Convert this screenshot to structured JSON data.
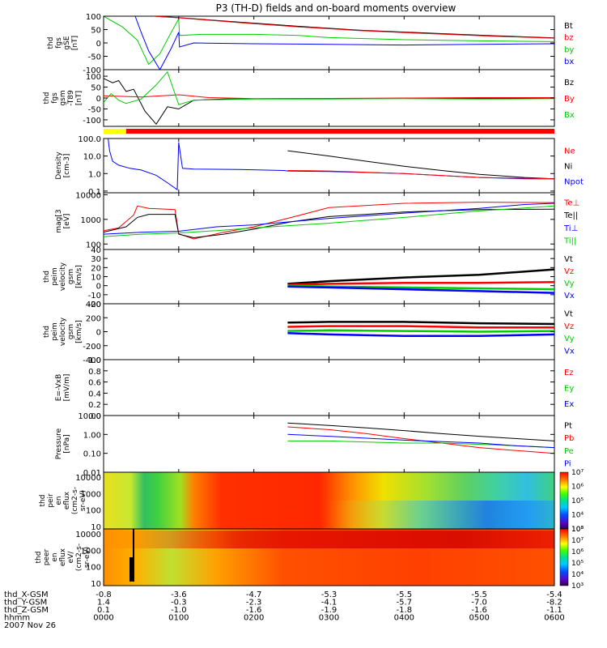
{
  "title": "P3 (TH-D) fields and on-board moments overview",
  "colors": {
    "black": "#000000",
    "red": "#ff0000",
    "green": "#00cc00",
    "blue": "#0000ff",
    "yellow": "#ffff00",
    "mag_bar": "#ff0000"
  },
  "chart_data": [
    {
      "type": "line",
      "panel": "fgs_gse",
      "ylabel": [
        "thd",
        "fgs",
        "gSE",
        "[nT]"
      ],
      "ylim": [
        -100,
        100
      ],
      "yticks": [
        -100,
        -50,
        0,
        50,
        100
      ],
      "legend": [
        {
          "label": "Bt",
          "color": "black"
        },
        {
          "label": "bz",
          "color": "red"
        },
        {
          "label": "by",
          "color": "green"
        },
        {
          "label": "bx",
          "color": "blue"
        }
      ],
      "series": [
        {
          "name": "Bt",
          "color": "black",
          "x": [
            0.66,
            1.0,
            1.8,
            2.6,
            3.4,
            4.4,
            5.2,
            6.0
          ],
          "y": [
            100,
            95,
            78,
            62,
            48,
            36,
            27,
            19
          ]
        },
        {
          "name": "bz",
          "color": "red",
          "x": [
            0.66,
            1.0,
            1.8,
            2.6,
            3.4,
            4.4,
            5.2,
            6.0
          ],
          "y": [
            100,
            94,
            76,
            60,
            46,
            34,
            25,
            18
          ]
        },
        {
          "name": "by",
          "color": "green",
          "x": [
            0.0,
            0.25,
            0.45,
            0.6,
            0.75,
            0.9,
            1.0,
            1.01,
            1.3,
            2.0,
            2.6,
            3.0,
            4.0,
            5.0,
            6.0
          ],
          "y": [
            100,
            60,
            10,
            -80,
            -40,
            40,
            90,
            28,
            32,
            32,
            28,
            20,
            12,
            8,
            5
          ]
        },
        {
          "name": "bx",
          "color": "blue",
          "x": [
            0.42,
            0.5,
            0.6,
            0.75,
            0.9,
            1.0,
            1.01,
            1.2,
            2.0,
            3.0,
            4.0,
            5.0,
            6.0
          ],
          "y": [
            100,
            40,
            -30,
            -100,
            -20,
            40,
            -15,
            0,
            -3,
            -5,
            -8,
            -5,
            -3
          ]
        }
      ]
    },
    {
      "type": "line",
      "panel": "fgs_gsm",
      "ylabel": [
        "thd",
        "fgs",
        "gsm",
        "-T89",
        "[nT]"
      ],
      "ylim": [
        -130,
        130
      ],
      "yticks": [
        -100,
        -50,
        0,
        50,
        100
      ],
      "legend": [
        {
          "label": "Bz",
          "color": "black"
        },
        {
          "label": "By",
          "color": "red"
        },
        {
          "label": "Bx",
          "color": "green"
        }
      ],
      "series": [
        {
          "name": "Bz",
          "color": "black",
          "x": [
            0.0,
            0.12,
            0.2,
            0.3,
            0.4,
            0.55,
            0.7,
            0.85,
            1.0,
            1.2,
            1.6,
            2.5,
            3.5,
            4.5,
            6.0
          ],
          "y": [
            90,
            70,
            80,
            30,
            40,
            -60,
            -120,
            -40,
            -50,
            -10,
            -5,
            -3,
            -2,
            -2,
            -2
          ]
        },
        {
          "name": "By",
          "color": "red",
          "x": [
            0.0,
            0.5,
            1.0,
            1.4,
            2.0,
            3.0,
            4.0,
            5.0,
            6.0
          ],
          "y": [
            10,
            5,
            15,
            2,
            -3,
            -2,
            0,
            2,
            2
          ]
        },
        {
          "name": "Bx",
          "color": "green",
          "x": [
            0.0,
            0.1,
            0.2,
            0.3,
            0.5,
            0.7,
            0.85,
            1.0,
            1.2,
            2.0,
            3.0,
            4.0,
            5.0,
            6.0
          ],
          "y": [
            -20,
            20,
            -10,
            -25,
            -5,
            60,
            120,
            -30,
            -10,
            -5,
            -5,
            -3,
            -5,
            -3
          ]
        }
      ]
    },
    {
      "type": "line",
      "panel": "density",
      "ylabel": [
        "Density",
        "[cm-3]"
      ],
      "yscale": "log",
      "ylim": [
        0.08,
        100
      ],
      "yticks": [
        "0.1",
        "1.0",
        "10.0",
        "100.0"
      ],
      "legend": [
        {
          "label": "Ne",
          "color": "red"
        },
        {
          "label": "Ni",
          "color": "black"
        },
        {
          "label": "Npot",
          "color": "blue"
        }
      ],
      "series": [
        {
          "name": "Npot",
          "color": "blue",
          "x": [
            0.0,
            0.06,
            0.08,
            0.12,
            0.2,
            0.35,
            0.5,
            0.7,
            0.85,
            0.98,
            1.0,
            1.05,
            1.2,
            1.8,
            2.4,
            2.45,
            3.0,
            4.0,
            5.0,
            5.6,
            6.0
          ],
          "y": [
            100,
            100,
            20,
            5,
            3,
            2,
            1.6,
            0.8,
            0.3,
            0.12,
            60,
            2,
            1.8,
            1.7,
            1.5,
            1.4,
            1.3,
            1.0,
            0.6,
            0.5,
            0.5
          ]
        },
        {
          "name": "Ni",
          "color": "black",
          "x": [
            2.45,
            3.0,
            3.5,
            4.0,
            4.5,
            5.0,
            5.6,
            6.0
          ],
          "y": [
            20,
            10,
            5,
            2.6,
            1.5,
            0.9,
            0.6,
            0.5
          ]
        },
        {
          "name": "Ne",
          "color": "red",
          "x": [
            2.45,
            3.0,
            4.0,
            5.0,
            6.0
          ],
          "y": [
            1.5,
            1.4,
            1.0,
            0.6,
            0.5
          ]
        }
      ]
    },
    {
      "type": "line",
      "panel": "temperature",
      "ylabel": [
        "mag[3",
        "[eV]"
      ],
      "yscale": "log",
      "ylim": [
        60,
        12000
      ],
      "yticks": [
        "100",
        "1000",
        "10000"
      ],
      "legend": [
        {
          "label": "Te⊥",
          "color": "red"
        },
        {
          "label": "Te||",
          "color": "black"
        },
        {
          "label": "Ti⊥",
          "color": "blue"
        },
        {
          "label": "Ti||",
          "color": "green"
        }
      ],
      "series": [
        {
          "name": "Te⊥",
          "color": "red",
          "x": [
            0.0,
            0.2,
            0.4,
            0.45,
            0.6,
            0.95,
            1.0,
            1.2,
            1.6,
            2.0,
            2.5,
            3.0,
            4.0,
            5.0,
            6.0
          ],
          "y": [
            350,
            450,
            1500,
            3500,
            2800,
            2500,
            260,
            160,
            300,
            500,
            1200,
            3000,
            4500,
            5000,
            4800
          ]
        },
        {
          "name": "Te||",
          "color": "black",
          "x": [
            0.0,
            0.3,
            0.45,
            0.6,
            0.95,
            1.0,
            1.2,
            1.6,
            2.0,
            2.5,
            3.0,
            4.0,
            5.0,
            6.0
          ],
          "y": [
            300,
            500,
            1200,
            1600,
            1600,
            250,
            180,
            250,
            400,
            800,
            1300,
            2000,
            2500,
            2600
          ]
        },
        {
          "name": "Ti⊥",
          "color": "blue",
          "x": [
            0.0,
            0.5,
            1.0,
            1.5,
            2.0,
            3.0,
            4.0,
            5.0,
            5.6,
            6.0
          ],
          "y": [
            250,
            300,
            330,
            500,
            600,
            1100,
            1800,
            2800,
            4000,
            4500
          ]
        },
        {
          "name": "Ti||",
          "color": "green",
          "x": [
            0.0,
            0.5,
            1.0,
            1.5,
            2.0,
            3.0,
            4.0,
            5.0,
            6.0
          ],
          "y": [
            200,
            250,
            280,
            350,
            450,
            700,
            1200,
            2200,
            3500
          ]
        }
      ]
    },
    {
      "type": "line",
      "panel": "velocity_gsm_1",
      "ylabel": [
        "thd",
        "peim",
        "velocity",
        "gsm",
        "[km/s]"
      ],
      "ylim": [
        -20,
        40
      ],
      "yticks": [
        -20,
        -10,
        0,
        10,
        20,
        30,
        40
      ],
      "legend": [
        {
          "label": "Vt",
          "color": "black"
        },
        {
          "label": "Vz",
          "color": "red"
        },
        {
          "label": "Vy",
          "color": "green"
        },
        {
          "label": "Vx",
          "color": "blue"
        }
      ],
      "series": [
        {
          "name": "Vt",
          "color": "black",
          "x": [
            2.45,
            3.0,
            4.0,
            5.0,
            6.0
          ],
          "y": [
            2,
            5,
            9,
            12,
            18
          ]
        },
        {
          "name": "Vz",
          "color": "red",
          "x": [
            2.45,
            3.0,
            4.0,
            5.0,
            6.0
          ],
          "y": [
            1,
            2,
            3,
            3,
            4
          ]
        },
        {
          "name": "Vy",
          "color": "green",
          "x": [
            2.45,
            3.0,
            4.0,
            5.0,
            6.0
          ],
          "y": [
            0,
            -1,
            -2,
            -3,
            -4
          ]
        },
        {
          "name": "Vx",
          "color": "blue",
          "x": [
            2.45,
            3.0,
            4.0,
            5.0,
            6.0
          ],
          "y": [
            -1,
            -2,
            -4,
            -6,
            -8
          ]
        }
      ]
    },
    {
      "type": "line",
      "panel": "velocity_gsm_2",
      "ylabel": [
        "thd",
        "peim",
        "velocity",
        "gsm",
        "[km/s]"
      ],
      "ylim": [
        -400,
        400
      ],
      "yticks": [
        -400,
        -200,
        0,
        200,
        400
      ],
      "legend": [
        {
          "label": "Vt",
          "color": "black"
        },
        {
          "label": "Vz",
          "color": "red"
        },
        {
          "label": "Vy",
          "color": "green"
        },
        {
          "label": "Vx",
          "color": "blue"
        }
      ],
      "series": [
        {
          "name": "Vt",
          "color": "black",
          "x": [
            2.45,
            3.0,
            4.0,
            5.0,
            6.0
          ],
          "y": [
            130,
            140,
            140,
            120,
            110
          ]
        },
        {
          "name": "Vz",
          "color": "red",
          "x": [
            2.45,
            3.0,
            4.0,
            5.0,
            6.0
          ],
          "y": [
            70,
            80,
            80,
            60,
            60
          ]
        },
        {
          "name": "Vy",
          "color": "green",
          "x": [
            2.45,
            3.0,
            4.0,
            5.0,
            6.0
          ],
          "y": [
            10,
            20,
            10,
            0,
            10
          ]
        },
        {
          "name": "Vx",
          "color": "blue",
          "x": [
            2.45,
            3.0,
            4.0,
            5.0,
            6.0
          ],
          "y": [
            -20,
            -40,
            -60,
            -60,
            -40
          ]
        }
      ]
    },
    {
      "type": "line",
      "panel": "e_field",
      "ylabel": [
        "E=-VxB",
        "[mV/m]"
      ],
      "ylim": [
        0,
        1
      ],
      "yticks": [
        "0.0",
        "0.2",
        "0.4",
        "0.6",
        "0.8",
        "1.0"
      ],
      "legend": [
        {
          "label": "Ez",
          "color": "red"
        },
        {
          "label": "Ey",
          "color": "green"
        },
        {
          "label": "Ex",
          "color": "blue"
        }
      ],
      "series": []
    },
    {
      "type": "line",
      "panel": "pressure",
      "ylabel": [
        "Pressure",
        "[nPa]"
      ],
      "yscale": "log",
      "ylim": [
        0.01,
        10
      ],
      "yticks": [
        "0.01",
        "0.10",
        "1.00",
        "10.00"
      ],
      "legend": [
        {
          "label": "Pt",
          "color": "black"
        },
        {
          "label": "Pb",
          "color": "red"
        },
        {
          "label": "Pe",
          "color": "green"
        },
        {
          "label": "Pi",
          "color": "blue"
        }
      ],
      "series": [
        {
          "name": "Pt",
          "color": "black",
          "x": [
            2.45,
            3.0,
            3.5,
            4.0,
            4.5,
            5.0,
            5.5,
            6.0
          ],
          "y": [
            4,
            3,
            2.2,
            1.6,
            1.1,
            0.8,
            0.6,
            0.45
          ]
        },
        {
          "name": "Pb",
          "color": "red",
          "x": [
            2.45,
            3.0,
            3.5,
            4.0,
            4.5,
            5.0,
            5.5,
            6.0
          ],
          "y": [
            2.5,
            1.8,
            1.1,
            0.6,
            0.35,
            0.2,
            0.14,
            0.1
          ]
        },
        {
          "name": "Pe",
          "color": "green",
          "x": [
            2.45,
            3.0,
            4.0,
            4.5,
            5.0,
            5.5,
            6.0
          ],
          "y": [
            0.45,
            0.45,
            0.35,
            0.35,
            0.3,
            0.25,
            0.2
          ]
        },
        {
          "name": "Pi",
          "color": "blue",
          "x": [
            2.45,
            3.0,
            4.0,
            5.0,
            5.5,
            6.0
          ],
          "y": [
            1.0,
            0.8,
            0.5,
            0.35,
            0.25,
            0.2
          ]
        }
      ]
    },
    {
      "type": "heatmap",
      "panel": "peir_en_eflux",
      "ylabel": [
        "thd",
        "peir",
        "en",
        "eflux",
        "(cm2-s-",
        "sr-eV)"
      ],
      "yscale": "log",
      "ylim": [
        7,
        20000
      ],
      "yticks": [
        "10",
        "100",
        "1000",
        "10000"
      ],
      "colorbar": {
        "ticks": [
          "10³",
          "10⁴",
          "10⁵",
          "10⁶",
          "10⁷"
        ]
      }
    },
    {
      "type": "heatmap",
      "panel": "peer_en_eflux",
      "ylabel": [
        "thd",
        "peer",
        "en",
        "eflux",
        "eV/",
        "(cm2-s-",
        "sr-eV)"
      ],
      "yscale": "log",
      "ylim": [
        7,
        20000
      ],
      "yticks": [
        "10",
        "100",
        "1000",
        "10000"
      ],
      "colorbar": {
        "ticks": [
          "10³",
          "10⁴",
          "10⁵",
          "10⁶",
          "10⁷",
          "10⁸"
        ]
      }
    }
  ],
  "bar": {
    "flag_color_before": "yellow",
    "flag_color_after": "red",
    "flag_switch_time": 0.3
  },
  "x_axis": {
    "rows": [
      {
        "label": "thd_X-GSM",
        "values": [
          "-0.8",
          "-3.6",
          "-4.7",
          "-5.3",
          "-5.5",
          "-5.5",
          "-5.4"
        ]
      },
      {
        "label": "thd_Y-GSM",
        "values": [
          "1.4",
          "-0.3",
          "-2.3",
          "-4.1",
          "-5.7",
          "-7.0",
          "-8.2"
        ]
      },
      {
        "label": "thd_Z-GSM",
        "values": [
          "0.1",
          "-1.0",
          "-1.6",
          "-1.9",
          "-1.8",
          "-1.6",
          "-1.1"
        ]
      },
      {
        "label": "hhmm",
        "values": [
          "0000",
          "0100",
          "0200",
          "0300",
          "0400",
          "0500",
          "0600"
        ]
      }
    ],
    "date": "2007 Nov 26"
  }
}
